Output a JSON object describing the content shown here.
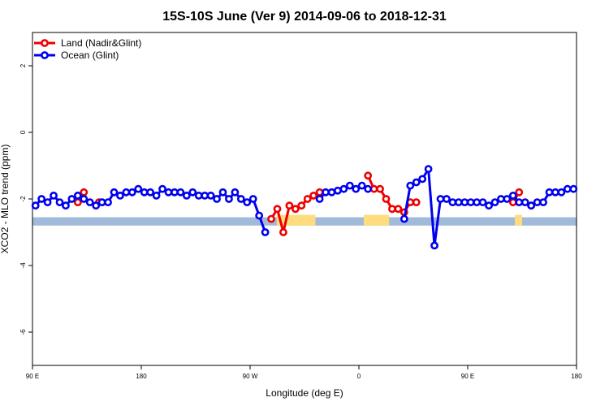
{
  "chart_data": {
    "type": "line",
    "title": "15S-10S June (Ver 9)   2014-09-06 to 2018-12-31",
    "xlabel": "Longitude (deg E)",
    "ylabel": "XCO2 - MLO trend (ppm)",
    "xlim": [
      0,
      450
    ],
    "ylim": [
      -7,
      3
    ],
    "x_ticks": [
      {
        "value": 0,
        "label": "90 E"
      },
      {
        "value": 90,
        "label": "180"
      },
      {
        "value": 180,
        "label": "90 W"
      },
      {
        "value": 270,
        "label": "0"
      },
      {
        "value": 360,
        "label": "90 E"
      },
      {
        "value": 450,
        "label": "180"
      }
    ],
    "y_ticks": [
      {
        "value": 2,
        "label": "2"
      },
      {
        "value": 0,
        "label": "0"
      },
      {
        "value": -2,
        "label": "-2"
      },
      {
        "value": -4,
        "label": "-4"
      },
      {
        "value": -6,
        "label": "-6"
      }
    ],
    "legend": {
      "position": "top-left",
      "entries": [
        {
          "name": "Land (Nadir&Glint)",
          "color": "#ee0000"
        },
        {
          "name": "Ocean (Glint)",
          "color": "#0000ee"
        }
      ]
    },
    "series": [
      {
        "name": "Land (Nadir&Glint)",
        "color": "#ee0000",
        "x": [
          37.5,
          42.5,
          55,
          197.5,
          202.5,
          207.5,
          212.5,
          217.5,
          222.5,
          227.5,
          232.5,
          237.5,
          277.5,
          282.5,
          287.5,
          292.5,
          297.5,
          302.5,
          307.5,
          312.5,
          317.5,
          397.5,
          402.5,
          412.5
        ],
        "y": [
          -2.1,
          -1.8,
          -2.1,
          -2.6,
          -2.3,
          -3.0,
          -2.2,
          -2.3,
          -2.2,
          -2.0,
          -1.9,
          -1.8,
          -1.3,
          -1.7,
          -1.7,
          -2.0,
          -2.3,
          -2.3,
          -2.4,
          -2.1,
          -2.1,
          -2.1,
          -1.8,
          -2.2
        ]
      },
      {
        "name": "Ocean (Glint)",
        "color": "#0000ee",
        "x": [
          2.5,
          7.5,
          12.5,
          17.5,
          22.5,
          27.5,
          32.5,
          37.5,
          42.5,
          47.5,
          52.5,
          57.5,
          62.5,
          67.5,
          72.5,
          77.5,
          82.5,
          87.5,
          92.5,
          97.5,
          102.5,
          107.5,
          112.5,
          117.5,
          122.5,
          127.5,
          132.5,
          137.5,
          142.5,
          147.5,
          152.5,
          157.5,
          162.5,
          167.5,
          172.5,
          177.5,
          182.5,
          187.5,
          192.5,
          237.5,
          242.5,
          247.5,
          252.5,
          257.5,
          262.5,
          267.5,
          272.5,
          277.5,
          307.5,
          312.5,
          317.5,
          322.5,
          327.5,
          332.5,
          337.5,
          342.5,
          347.5,
          352.5,
          357.5,
          362.5,
          367.5,
          372.5,
          377.5,
          382.5,
          387.5,
          392.5,
          397.5,
          402.5,
          407.5,
          412.5,
          417.5,
          422.5,
          427.5,
          432.5,
          437.5,
          442.5,
          447.5
        ],
        "y": [
          -2.2,
          -2.0,
          -2.1,
          -1.9,
          -2.1,
          -2.2,
          -2.0,
          -1.9,
          -2.0,
          -2.1,
          -2.2,
          -2.1,
          -2.1,
          -1.8,
          -1.9,
          -1.8,
          -1.8,
          -1.7,
          -1.8,
          -1.8,
          -1.9,
          -1.7,
          -1.8,
          -1.8,
          -1.8,
          -1.9,
          -1.8,
          -1.9,
          -1.9,
          -1.9,
          -2.0,
          -1.8,
          -2.0,
          -1.8,
          -2.0,
          -2.1,
          -2.0,
          -2.5,
          -3.0,
          -2.0,
          -1.8,
          -1.8,
          -1.75,
          -1.7,
          -1.6,
          -1.7,
          -1.6,
          -1.7,
          -2.6,
          -1.6,
          -1.5,
          -1.4,
          -1.1,
          -3.4,
          -2.0,
          -2.0,
          -2.1,
          -2.1,
          -2.1,
          -2.1,
          -2.1,
          -2.1,
          -2.2,
          -2.1,
          -2.0,
          -2.0,
          -1.9,
          -2.1,
          -2.1,
          -2.2,
          -2.1,
          -2.1,
          -1.8,
          -1.8,
          -1.8,
          -1.7,
          -1.7
        ]
      }
    ],
    "background_strip": {
      "description_colors": {
        "ocean": "#a2bad9",
        "land": "#ffdd7f"
      },
      "y_range": [
        -2.8,
        -2.55
      ],
      "land_segments": [
        [
          202,
          234
        ],
        [
          274,
          295
        ],
        [
          399,
          405
        ]
      ]
    }
  }
}
